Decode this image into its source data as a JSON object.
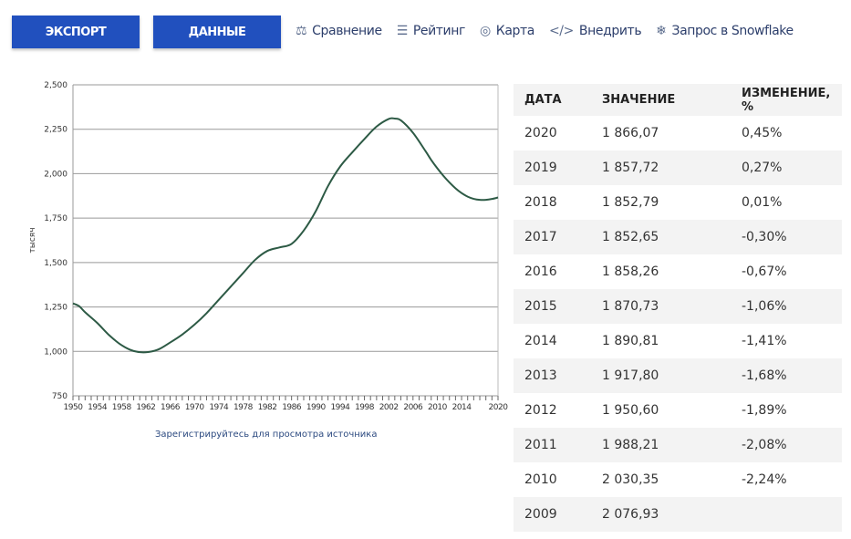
{
  "toolbar": {
    "export_label": "ЭКСПОРТ",
    "data_label": "ДАННЫЕ",
    "links": [
      {
        "label": "Сравнение",
        "icon": "scales-icon"
      },
      {
        "label": "Рейтинг",
        "icon": "list-icon"
      },
      {
        "label": "Карта",
        "icon": "globe-icon"
      },
      {
        "label": "Внедрить",
        "icon": "code-icon"
      },
      {
        "label": "Запрос в Snowflake",
        "icon": "snowflake-icon"
      }
    ]
  },
  "chart_data": {
    "type": "line",
    "title": "",
    "xlabel": "",
    "ylabel": "тысяч",
    "xlim": [
      1950,
      2020
    ],
    "ylim": [
      750,
      2500
    ],
    "grid": true,
    "yticks": [
      "750",
      "1,000",
      "1,250",
      "1,500",
      "1,750",
      "2,000",
      "2,250",
      "2,500"
    ],
    "ytick_values": [
      750,
      1000,
      1250,
      1500,
      1750,
      2000,
      2250,
      2500
    ],
    "xticks": [
      "1950",
      "1954",
      "1958",
      "1962",
      "1966",
      "1970",
      "1974",
      "1978",
      "1982",
      "1986",
      "1990",
      "1994",
      "1998",
      "2002",
      "2006",
      "2010",
      "2014",
      "2020"
    ],
    "color": "#2d5a45",
    "x": [
      1950,
      1951,
      1952,
      1954,
      1956,
      1958,
      1960,
      1962,
      1964,
      1966,
      1968,
      1970,
      1972,
      1974,
      1976,
      1978,
      1980,
      1982,
      1984,
      1986,
      1988,
      1990,
      1992,
      1994,
      1996,
      1998,
      2000,
      2002,
      2003,
      2004,
      2006,
      2008,
      2009,
      2010,
      2011,
      2012,
      2013,
      2014,
      2015,
      2016,
      2017,
      2018,
      2019,
      2020
    ],
    "y": [
      1270,
      1255,
      1220,
      1160,
      1090,
      1035,
      1002,
      995,
      1010,
      1050,
      1095,
      1150,
      1215,
      1290,
      1365,
      1440,
      1515,
      1565,
      1585,
      1605,
      1680,
      1790,
      1930,
      2040,
      2120,
      2195,
      2265,
      2308,
      2310,
      2300,
      2230,
      2130,
      2076.93,
      2030.35,
      1988.21,
      1950.6,
      1917.8,
      1890.81,
      1870.73,
      1858.26,
      1852.65,
      1852.79,
      1857.72,
      1866.07
    ]
  },
  "source_link": "Зарегистрируйтесь для просмотра источника",
  "table": {
    "headers": [
      "ДАТА",
      "ЗНАЧЕНИЕ",
      "ИЗМЕНЕНИЕ, %"
    ],
    "rows": [
      [
        "2020",
        "1 866,07",
        "0,45%"
      ],
      [
        "2019",
        "1 857,72",
        "0,27%"
      ],
      [
        "2018",
        "1 852,79",
        "0,01%"
      ],
      [
        "2017",
        "1 852,65",
        "-0,30%"
      ],
      [
        "2016",
        "1 858,26",
        "-0,67%"
      ],
      [
        "2015",
        "1 870,73",
        "-1,06%"
      ],
      [
        "2014",
        "1 890,81",
        "-1,41%"
      ],
      [
        "2013",
        "1 917,80",
        "-1,68%"
      ],
      [
        "2012",
        "1 950,60",
        "-1,89%"
      ],
      [
        "2011",
        "1 988,21",
        "-2,08%"
      ],
      [
        "2010",
        "2 030,35",
        "-2,24%"
      ],
      [
        "2009",
        "2 076,93",
        ""
      ]
    ]
  }
}
